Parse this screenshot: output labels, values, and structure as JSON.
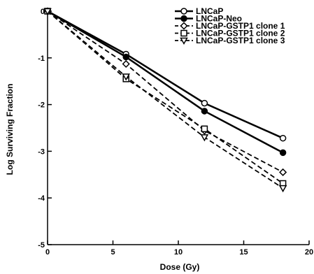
{
  "chart_data": {
    "type": "line",
    "xlabel": "Dose (Gy)",
    "ylabel": "Log Surviving Fraction",
    "xlim": [
      0,
      20
    ],
    "ylim": [
      -5,
      0
    ],
    "xticks": [
      0,
      5,
      10,
      15,
      20
    ],
    "yticks": [
      0,
      -1,
      -2,
      -3,
      -4,
      -5
    ],
    "x": [
      0,
      6,
      12,
      18
    ],
    "legend_position": "top-right",
    "series": [
      {
        "name": "LNCaP",
        "values": [
          0,
          -0.92,
          -1.97,
          -2.72
        ],
        "line": "solid",
        "marker": "circle-open",
        "color": "#000000"
      },
      {
        "name": "LNCaP-Neo",
        "values": [
          0,
          -0.98,
          -2.14,
          -3.03
        ],
        "line": "solid",
        "marker": "circle-filled",
        "color": "#000000"
      },
      {
        "name": "LNCaP-GSTP1 clone 1",
        "values": [
          0,
          -1.13,
          -2.56,
          -3.45
        ],
        "line": "dashed",
        "marker": "diamond-open",
        "color": "#000000"
      },
      {
        "name": "LNCaP-GSTP1 clone 2",
        "values": [
          0,
          -1.45,
          -2.52,
          -3.69
        ],
        "line": "dashed",
        "marker": "square-open",
        "color": "#000000"
      },
      {
        "name": "LNCaP-GSTP1 clone 3",
        "values": [
          0,
          -1.4,
          -2.7,
          -3.79
        ],
        "line": "dashed",
        "marker": "triangle-down-open",
        "color": "#000000"
      }
    ]
  }
}
